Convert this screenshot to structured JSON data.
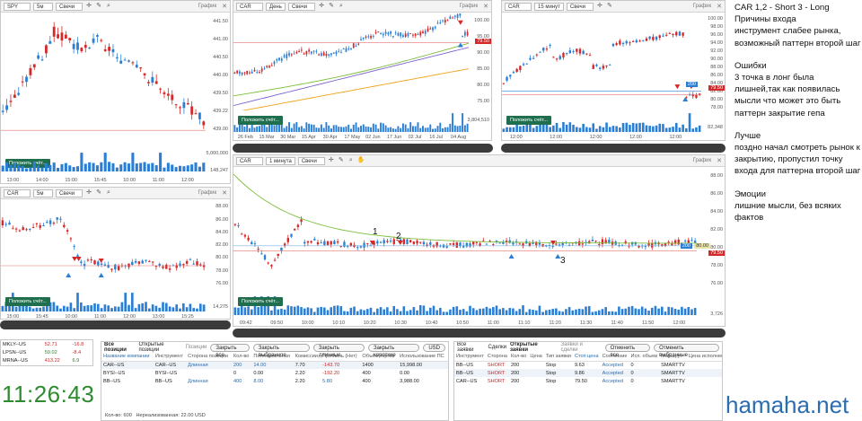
{
  "charts": {
    "spy_5m": {
      "ticker": "SPY",
      "tf": "5м",
      "type": "Свечи",
      "label": "График",
      "y_ticks": [
        "441.50",
        "441.00",
        "440.50",
        "440.00",
        "439.50",
        "439.22",
        "439.00"
      ],
      "vol_ticks": [
        "5,000,000",
        "148,247"
      ],
      "x_ticks": [
        "13:00",
        "14:00",
        "15:00",
        "15:45",
        "10:00",
        "11:00",
        "12:00"
      ],
      "btn": "Положить счёт..."
    },
    "car_day": {
      "ticker": "CAR",
      "tf": "День",
      "type": "Свечи",
      "label": "График",
      "y_ticks": [
        "100.00",
        "95.00",
        "90.00",
        "85.00",
        "80.00",
        "75.00"
      ],
      "price": "79.50",
      "vol_ticks": [
        "3,804,510"
      ],
      "x_ticks": [
        "26 Feb",
        "15 Mar",
        "30 Mar",
        "15 Apr",
        "30 Apr",
        "17 May",
        "02 Jun",
        "17 Jun",
        "02 Jul",
        "16 Jul",
        "04 Aug"
      ],
      "btn": "Положить счёт..."
    },
    "car_15m": {
      "ticker": "CAR",
      "tf": "15 минут",
      "type": "Свечи",
      "label": "График",
      "y_ticks": [
        "100.00",
        "98.00",
        "96.00",
        "94.00",
        "92.00",
        "90.00",
        "88.00",
        "86.00",
        "84.00",
        "82.00",
        "80.00",
        "78.00"
      ],
      "price": "79.50",
      "box": "200",
      "vol_ticks": [
        "82,348"
      ],
      "x_ticks": [
        "12:00",
        "12:00",
        "12:00",
        "12:00",
        "12:00"
      ],
      "btn": "Положить счёт..."
    },
    "car_5m": {
      "ticker": "CAR",
      "tf": "5м",
      "type": "Свечи",
      "label": "График",
      "y_ticks": [
        "88.00",
        "86.00",
        "84.00",
        "82.00",
        "80.00",
        "78.00",
        "76.00"
      ],
      "vol_ticks": [
        "14,275"
      ],
      "x_ticks": [
        "15:00",
        "15:45",
        "10:00",
        "11:00",
        "12:00",
        "13:00",
        "15:25"
      ],
      "btn": "Положить счёт..."
    },
    "car_1m": {
      "ticker": "CAR",
      "tf": "1 минута",
      "type": "Свечи",
      "label": "График",
      "y_ticks": [
        "88.00",
        "86.00",
        "84.00",
        "82.00",
        "80.00",
        "78.00",
        "76.00"
      ],
      "price": "79.50",
      "box": "200",
      "box2": "80.00",
      "vol_ticks": [
        "3,726"
      ],
      "x_ticks": [
        "09:42",
        "09:50",
        "10:00",
        "10:10",
        "10:20",
        "10:30",
        "10:40",
        "10:50",
        "11:00",
        "11:10",
        "11:20",
        "11:30",
        "11:40",
        "11:50",
        "12:00"
      ],
      "markers": [
        "1",
        "2",
        "3"
      ],
      "btn": "Положить счёт..."
    }
  },
  "notes": {
    "title": "CAR 1,2 - Short 3 - Long",
    "reasons": [
      "Причины входа",
      "инструмент слабее рынка, возможный паттерн второй шаг"
    ],
    "errors": [
      "Ошибки",
      "3 точка в лонг была лишней,так как появилась мысли что может это быть паттерн закрытие гепа"
    ],
    "better": [
      "Лучше",
      "поздно начал смотреть рынок к закрытию, пропустил точку входа для паттерна второй шаг"
    ],
    "emotions": [
      "Эмоции",
      "лишние мысли, без всяких фактов"
    ]
  },
  "watchlist": [
    {
      "sym": "MKLY--US",
      "v1": "52.71",
      "v2": "-16.8"
    },
    {
      "sym": "LPSN--US",
      "v1": "59.02",
      "v2": "-8.4"
    },
    {
      "sym": "MRNA--US",
      "v1": "413.22",
      "v2": "6.9"
    }
  ],
  "clock": "11:26:43",
  "positions": {
    "tabs": [
      "Все позиции",
      "Открытые позиции",
      "Позиции"
    ],
    "buttons": [
      "Закрыть все",
      "Закрыть выбранное",
      "Закрыть длинные",
      "Закрыть короткие",
      "USD"
    ],
    "headers": [
      "Название компании",
      "Инструмент",
      "Сторона позиции",
      "Кол-во",
      "Потенциальная",
      "Комиссии",
      "Прибыль (Нет)",
      "Объём торгов",
      "Использование ПС"
    ],
    "rows": [
      {
        "name": "CAR--US",
        "inst": "CAR--US",
        "side": "Длинная",
        "qty": "200",
        "pot": "14.00",
        "com": "7.70",
        "pnl": "-143.70",
        "vol": "1400",
        "use": "15,998.00"
      },
      {
        "name": "BYSI--US",
        "inst": "BYSI--US",
        "side": "",
        "qty": "0",
        "pot": "0.00",
        "com": "2.20",
        "pnl": "-192.20",
        "vol": "400",
        "use": "0.00"
      },
      {
        "name": "BB--US",
        "inst": "BB--US",
        "side": "Длинная",
        "qty": "400",
        "pot": "8.00",
        "com": "2.20",
        "pnl": "5.80",
        "vol": "400",
        "use": "3,988.00"
      }
    ],
    "footer_qty": "Кол-во: 600",
    "footer_unreal": "Нереализованная: 22.00 USD"
  },
  "orders": {
    "tabs": [
      "Все заявки",
      "Сделки",
      "Открытые заявки",
      "Заявки и сделки"
    ],
    "buttons": [
      "Отменить все",
      "Отменить выбранные"
    ],
    "headers": [
      "Инструмент",
      "Сторона",
      "Кол-во",
      "Цена",
      "Тип заявки",
      "Стоп цена",
      "Состояние",
      "Исп. объем",
      "Маршрут",
      "Цена исполнения",
      "Ви"
    ],
    "rows": [
      {
        "inst": "BB--US",
        "side": "SHORT",
        "qty": "200",
        "price": "",
        "type": "Stop",
        "stop": "9.63",
        "state": "Accepted",
        "filled": "0",
        "route": "SMARTTV",
        "exec": ""
      },
      {
        "inst": "BB--US",
        "side": "SHORT",
        "qty": "200",
        "price": "",
        "type": "Stop",
        "stop": "9.86",
        "state": "Accepted",
        "filled": "0",
        "route": "SMARTTV",
        "exec": ""
      },
      {
        "inst": "CAR--US",
        "side": "SHORT",
        "qty": "200",
        "price": "",
        "type": "Stop",
        "stop": "79.50",
        "state": "Accepted",
        "filled": "0",
        "route": "SMARTTV",
        "exec": ""
      }
    ]
  },
  "watermark": "hamaha.net",
  "colors": {
    "up": "#2a7fd4",
    "down": "#d62828",
    "ma_green": "#7cbf3a",
    "ma_purple": "#7b5fd0",
    "ma_orange": "#f0a21a",
    "btn": "#1f6f4e",
    "clock": "#2e8b30"
  }
}
